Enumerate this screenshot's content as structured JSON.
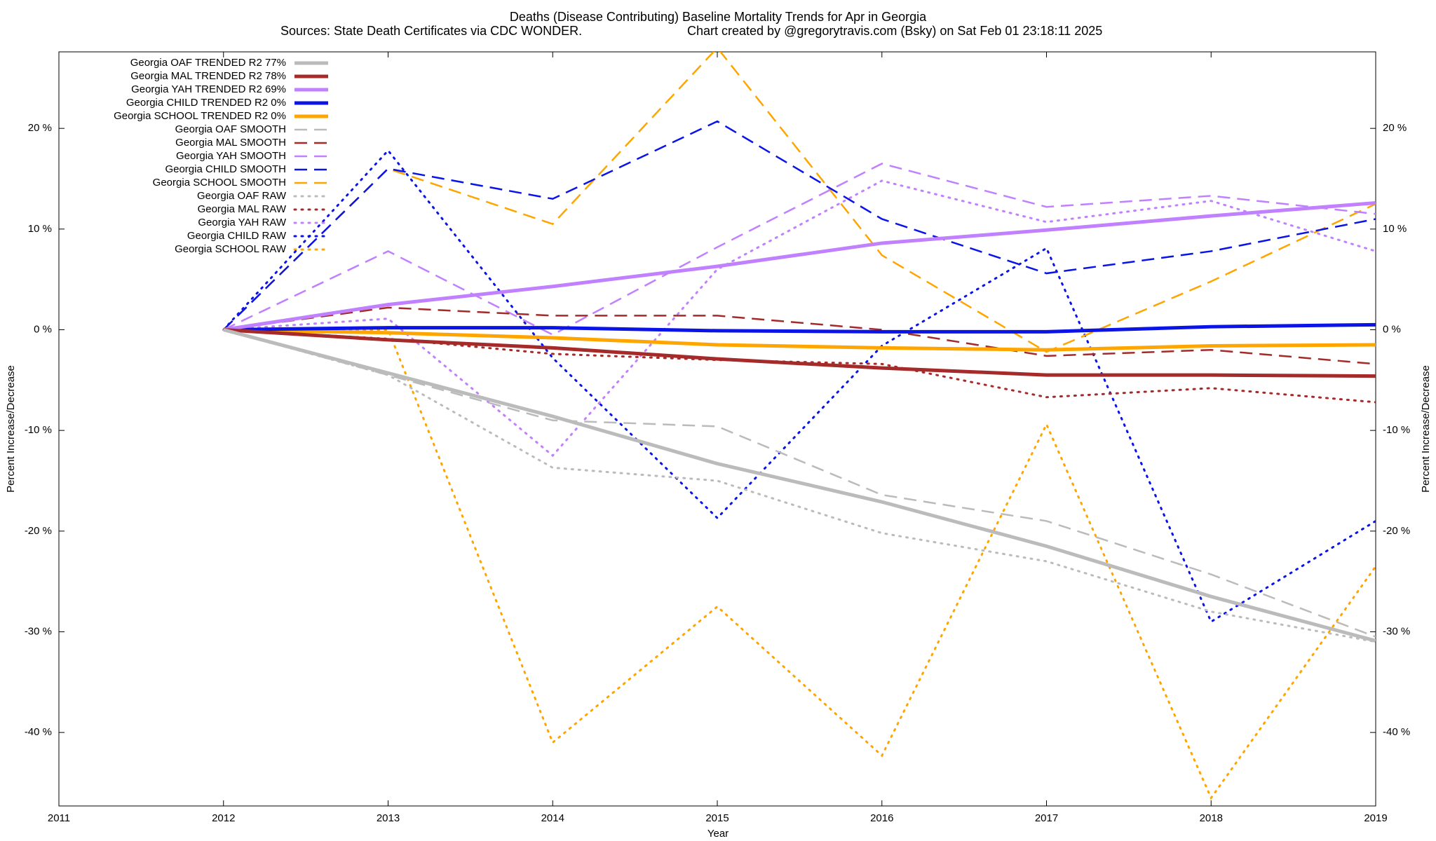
{
  "chart_data": {
    "type": "line",
    "title": "Deaths (Disease Contributing)  Baseline Mortality Trends for Apr in Georgia",
    "source": "Sources: State Death Certificates via CDC WONDER.",
    "credit": "Chart created by @gregorytravis.com (Bsky) on Sat Feb 01 23:18:11 2025",
    "xlabel": "Year",
    "ylabel": "Percent Increase/Decrease",
    "y2label": "Percent Increase/Decrease",
    "x": [
      2012,
      2013,
      2014,
      2015,
      2016,
      2017,
      2018,
      2019
    ],
    "xlim": [
      2011,
      2019
    ],
    "xticks": [
      2011,
      2012,
      2013,
      2014,
      2015,
      2016,
      2017,
      2018,
      2019
    ],
    "ylim": [
      -47.3,
      27.6
    ],
    "yticks": [
      {
        "value": -40,
        "label": "-40 %"
      },
      {
        "value": -30,
        "label": "-30 %"
      },
      {
        "value": -20,
        "label": "-20 %"
      },
      {
        "value": -10,
        "label": "-10 %"
      },
      {
        "value": 0,
        "label": "0 %"
      },
      {
        "value": 10,
        "label": "10 %"
      },
      {
        "value": 20,
        "label": "20 %"
      }
    ],
    "y2lim": [
      -47.3,
      27.6
    ],
    "y2ticks": [
      {
        "value": -40,
        "label": "-40 %"
      },
      {
        "value": -30,
        "label": "-30 %"
      },
      {
        "value": -20,
        "label": "-20 %"
      },
      {
        "value": -10,
        "label": "-10 %"
      },
      {
        "value": 0,
        "label": "0 %"
      },
      {
        "value": 10,
        "label": "10 %"
      },
      {
        "value": 20,
        "label": "20 %"
      }
    ],
    "legend": "upper left",
    "series": [
      {
        "name": "Georgia OAF TRENDED R2  77%",
        "color": "#bbbbbb",
        "style": "solid",
        "values": [
          0,
          -4.3,
          -8.6,
          -13.3,
          -17.1,
          -21.5,
          -26.5,
          -30.9
        ]
      },
      {
        "name": "Georgia MAL TRENDED R2  78%",
        "color": "#a52a2a",
        "style": "solid",
        "values": [
          0,
          -1.0,
          -1.8,
          -2.9,
          -3.8,
          -4.5,
          -4.5,
          -4.6
        ]
      },
      {
        "name": "Georgia YAH TRENDED R2  69%",
        "color": "#c080ff",
        "style": "solid",
        "values": [
          0,
          2.5,
          4.3,
          6.3,
          8.6,
          9.9,
          11.3,
          12.6
        ]
      },
      {
        "name": "Georgia CHILD TRENDED R2   0%",
        "color": "#0a14e6",
        "style": "solid",
        "values": [
          0,
          0.2,
          0.2,
          -0.1,
          -0.2,
          -0.2,
          0.3,
          0.5
        ]
      },
      {
        "name": "Georgia SCHOOL TRENDED R2   0%",
        "color": "#ffa500",
        "style": "solid",
        "values": [
          0,
          -0.3,
          -0.8,
          -1.5,
          -1.8,
          -2.0,
          -1.6,
          -1.5
        ]
      },
      {
        "name": "Georgia OAF SMOOTH",
        "color": "#bbbbbb",
        "style": "dashed",
        "values": [
          0,
          -4.5,
          -9.0,
          -9.6,
          -16.4,
          -19.0,
          -24.3,
          -30.5
        ]
      },
      {
        "name": "Georgia MAL SMOOTH",
        "color": "#a52a2a",
        "style": "dashed",
        "values": [
          0,
          2.2,
          1.4,
          1.4,
          0,
          -2.6,
          -2.0,
          -3.4
        ]
      },
      {
        "name": "Georgia YAH SMOOTH",
        "color": "#c080ff",
        "style": "dashed",
        "values": [
          0,
          7.8,
          -0.5,
          8.2,
          16.5,
          12.2,
          13.3,
          11.5
        ]
      },
      {
        "name": "Georgia CHILD SMOOTH",
        "color": "#0a14e6",
        "style": "dashed",
        "values": [
          0,
          16.0,
          13.0,
          20.7,
          11.0,
          5.6,
          7.8,
          11.0
        ]
      },
      {
        "name": "Georgia SCHOOL SMOOTH",
        "color": "#ffa500",
        "style": "dashed",
        "values": [
          0,
          16.0,
          10.5,
          28.0,
          7.4,
          -2.2,
          4.8,
          12.5
        ]
      },
      {
        "name": "Georgia OAF RAW",
        "color": "#bbbbbb",
        "style": "dotted",
        "values": [
          0,
          -4.5,
          -13.7,
          -15.0,
          -20.2,
          -23.0,
          -28.0,
          -31.0
        ]
      },
      {
        "name": "Georgia MAL RAW",
        "color": "#a52a2a",
        "style": "dotted",
        "values": [
          0,
          -0.9,
          -2.4,
          -3.0,
          -3.4,
          -6.7,
          -5.8,
          -7.2
        ]
      },
      {
        "name": "Georgia YAH RAW",
        "color": "#c080ff",
        "style": "dotted",
        "values": [
          0,
          1.1,
          -12.5,
          6.0,
          14.8,
          10.7,
          12.8,
          7.8
        ]
      },
      {
        "name": "Georgia CHILD RAW",
        "color": "#0a14e6",
        "style": "dotted",
        "values": [
          0,
          17.8,
          -2.8,
          -18.7,
          -1.6,
          8.1,
          -29.0,
          -19.0
        ]
      },
      {
        "name": "Georgia SCHOOL RAW",
        "color": "#ffa500",
        "style": "dotted",
        "values": [
          0,
          0,
          -41.0,
          -27.5,
          -42.3,
          -9.4,
          -46.5,
          -23.5
        ]
      }
    ]
  }
}
